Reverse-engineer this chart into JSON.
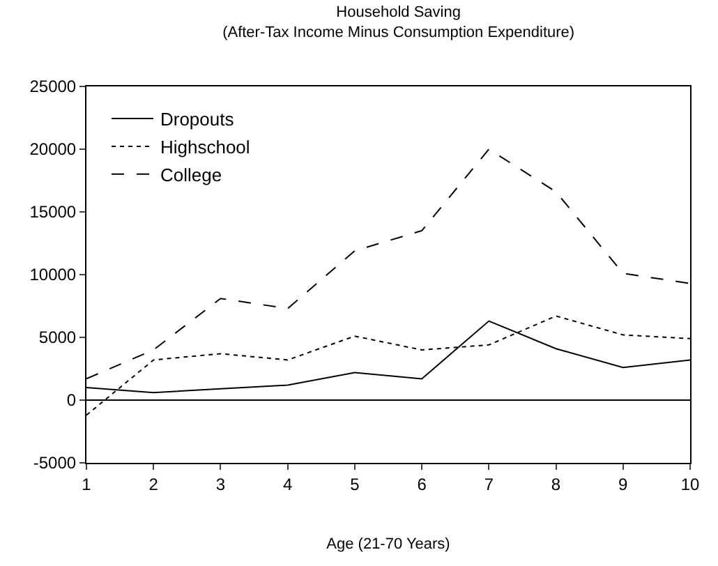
{
  "chart_data": {
    "type": "line",
    "title": "Household Saving",
    "subtitle": "(After-Tax Income Minus Consumption Expenditure)",
    "xlabel": "Age (21-70 Years)",
    "x": [
      1,
      2,
      3,
      4,
      5,
      6,
      7,
      8,
      9,
      10
    ],
    "series": [
      {
        "name": "Dropouts",
        "color": "#000000",
        "line_style": "solid",
        "values": [
          1000,
          600,
          900,
          1200,
          2200,
          1700,
          6300,
          4100,
          2600,
          3200
        ]
      },
      {
        "name": "Highschool",
        "color": "#000000",
        "line_style": "dotted",
        "values": [
          -1200,
          3200,
          3700,
          3200,
          5100,
          4000,
          4400,
          6700,
          5200,
          4900
        ]
      },
      {
        "name": "College",
        "color": "#000000",
        "line_style": "dashed",
        "values": [
          1700,
          4000,
          8100,
          7300,
          11900,
          13500,
          20000,
          16600,
          10100,
          9300
        ]
      }
    ],
    "xlim": [
      1,
      10
    ],
    "xticks": [
      1,
      2,
      3,
      4,
      5,
      6,
      7,
      8,
      9,
      10
    ],
    "ylim": [
      -5000,
      25000
    ],
    "yticks": [
      -5000,
      0,
      5000,
      10000,
      15000,
      20000,
      25000
    ],
    "ref_lines": [
      {
        "axis": "y",
        "value": 0,
        "color": "#000000",
        "line_style": "solid"
      }
    ],
    "legend": "top left",
    "marker": "none"
  }
}
